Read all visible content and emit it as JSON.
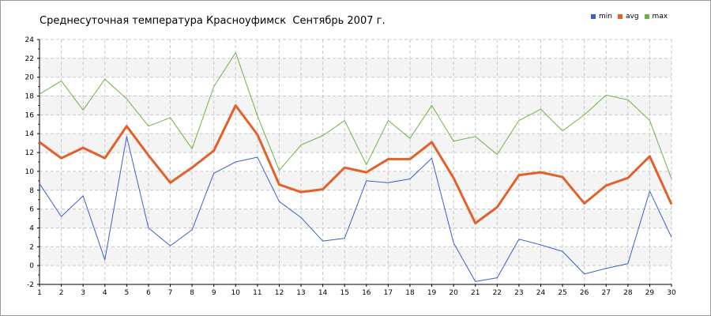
{
  "title": "Среднесуточная температура Красноуфимск  Сентябрь 2007 г.",
  "chart_data": {
    "type": "line",
    "title": "Среднесуточная температура Красноуфимск  Сентябрь 2007 г.",
    "x": [
      1,
      2,
      3,
      4,
      5,
      6,
      7,
      8,
      9,
      10,
      11,
      12,
      13,
      14,
      15,
      16,
      17,
      18,
      19,
      20,
      21,
      22,
      23,
      24,
      25,
      26,
      27,
      28,
      29,
      30
    ],
    "xlim": [
      1,
      30
    ],
    "ylim": [
      -2,
      24
    ],
    "yticks": [
      -2,
      0,
      2,
      4,
      6,
      8,
      10,
      12,
      14,
      16,
      18,
      20,
      22,
      24
    ],
    "grid": true,
    "legend_position": "top-right",
    "series": [
      {
        "name": "min",
        "color": "#3a5fd0",
        "values": [
          8.7,
          5.2,
          7.4,
          0.6,
          13.7,
          4.0,
          2.1,
          3.8,
          9.8,
          11.0,
          11.5,
          6.8,
          5.1,
          2.6,
          2.9,
          9.0,
          8.8,
          9.2,
          11.4,
          2.4,
          -1.7,
          -1.3,
          2.8,
          2.2,
          1.5,
          -0.9,
          -0.3,
          0.2,
          7.9,
          3.0
        ]
      },
      {
        "name": "avg",
        "color": "#e2612a",
        "values": [
          13.1,
          11.4,
          12.5,
          11.4,
          14.8,
          11.7,
          8.8,
          10.4,
          12.2,
          17.0,
          13.9,
          8.6,
          7.8,
          8.1,
          10.4,
          9.9,
          11.3,
          11.3,
          13.1,
          9.3,
          4.5,
          6.2,
          9.6,
          9.9,
          9.4,
          6.6,
          8.5,
          9.3,
          11.6,
          6.5
        ]
      },
      {
        "name": "max",
        "color": "#6cb346",
        "values": [
          18.2,
          19.6,
          16.5,
          19.8,
          17.7,
          14.8,
          15.7,
          12.4,
          19.0,
          22.6,
          15.9,
          10.1,
          12.8,
          13.8,
          15.4,
          10.7,
          15.4,
          13.5,
          17.0,
          13.2,
          13.7,
          11.8,
          15.4,
          16.6,
          14.3,
          16.0,
          18.1,
          17.6,
          15.4,
          9.2
        ]
      }
    ]
  }
}
